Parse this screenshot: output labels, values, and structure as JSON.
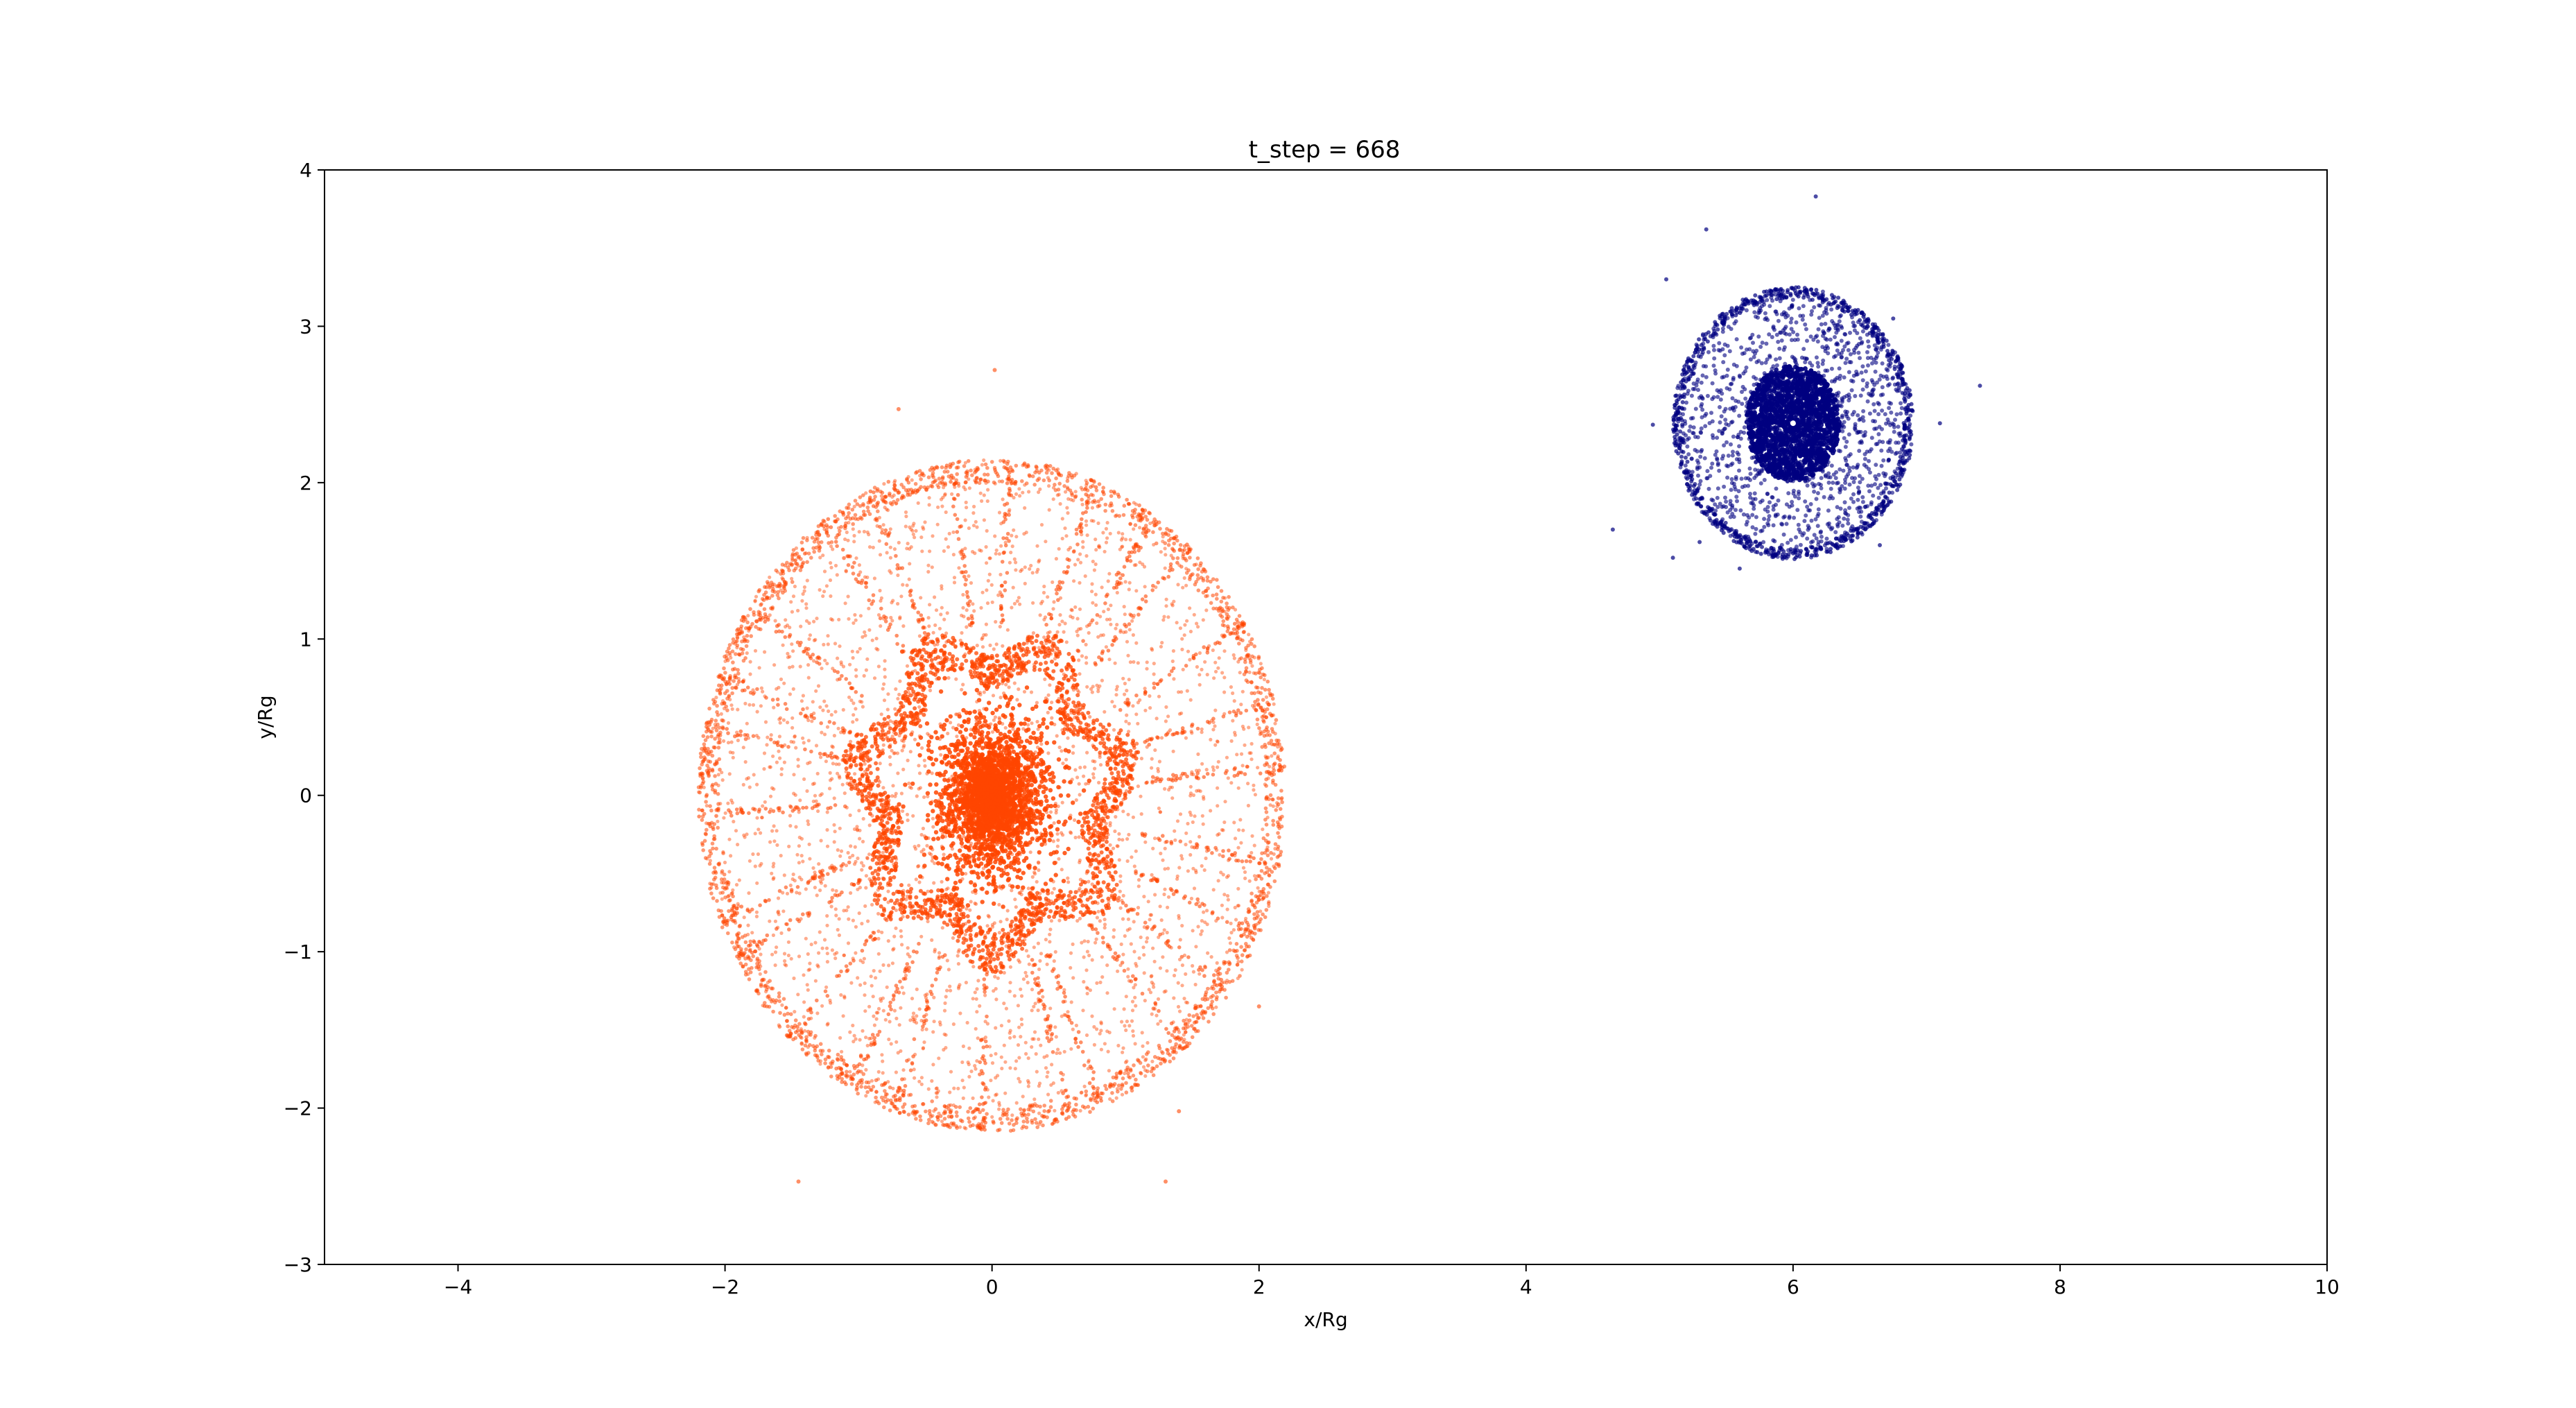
{
  "chart_data": {
    "type": "scatter",
    "title": "t_step = 668",
    "xlabel": "x/Rg",
    "ylabel": "y/Rg",
    "xlim": [
      -5,
      10
    ],
    "ylim": [
      -3,
      4
    ],
    "xticks": [
      -4,
      -2,
      0,
      2,
      4,
      6,
      8,
      10
    ],
    "yticks": [
      -3,
      -2,
      -1,
      0,
      1,
      2,
      3,
      4
    ],
    "xtick_labels": [
      "−4",
      "−2",
      "0",
      "2",
      "4",
      "6",
      "8",
      "10"
    ],
    "ytick_labels": [
      "−3",
      "−2",
      "−1",
      "0",
      "1",
      "2",
      "3",
      "4"
    ],
    "grid": false,
    "series": [
      {
        "color": "#FF4500",
        "structure": {
          "center": [
            0.0,
            0.0
          ],
          "outer_radius_x": 2.2,
          "outer_radius_y": 2.15,
          "inner_radius": 1.0,
          "core_radius": 0.45
        },
        "outliers": [
          [
            -0.7,
            2.47
          ],
          [
            0.02,
            2.72
          ],
          [
            -1.45,
            -2.47
          ],
          [
            1.3,
            -2.47
          ],
          [
            2.0,
            -1.35
          ],
          [
            1.4,
            -2.02
          ]
        ]
      },
      {
        "color": "#000080",
        "structure": {
          "center": [
            6.0,
            2.38
          ],
          "outer_radius_x": 0.9,
          "outer_radius_y": 0.87,
          "inner_radius": 0.35
        },
        "outliers": [
          [
            6.17,
            3.83
          ],
          [
            5.35,
            3.62
          ],
          [
            5.05,
            3.3
          ],
          [
            7.4,
            2.62
          ],
          [
            4.95,
            2.37
          ],
          [
            7.1,
            2.38
          ],
          [
            4.65,
            1.7
          ],
          [
            5.1,
            1.52
          ],
          [
            5.6,
            1.45
          ],
          [
            6.65,
            1.6
          ],
          [
            6.75,
            3.05
          ],
          [
            5.3,
            1.62
          ]
        ]
      }
    ]
  }
}
